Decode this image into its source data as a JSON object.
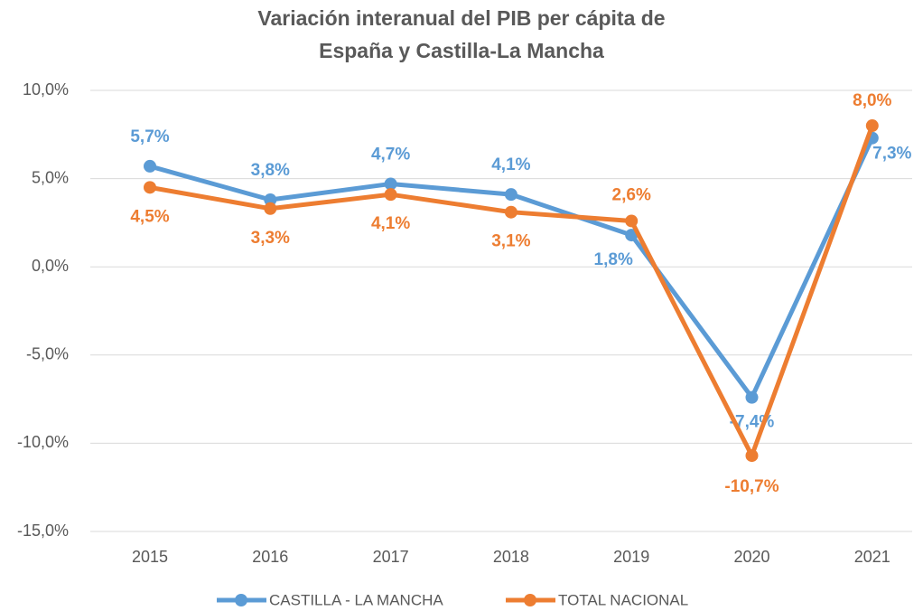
{
  "chart_data": {
    "type": "line",
    "title": [
      "Variación interanual del PIB per cápita de",
      "España y Castilla-La Mancha"
    ],
    "categories": [
      "2015",
      "2016",
      "2017",
      "2018",
      "2019",
      "2020",
      "2021"
    ],
    "series": [
      {
        "name": "CASTILLA - LA MANCHA",
        "color": "#5b9bd5",
        "values": [
          5.7,
          3.8,
          4.7,
          4.1,
          1.8,
          -7.4,
          7.3
        ],
        "value_labels": [
          "5,7%",
          "3,8%",
          "4,7%",
          "4,1%",
          "1,8%",
          "-7,4%",
          "7,3%"
        ]
      },
      {
        "name": "TOTAL NACIONAL",
        "color": "#ed7d31",
        "values": [
          4.5,
          3.3,
          4.1,
          3.1,
          2.6,
          -10.7,
          8.0
        ],
        "value_labels": [
          "4,5%",
          "3,3%",
          "4,1%",
          "3,1%",
          "2,6%",
          "-10,7%",
          "8,0%"
        ]
      }
    ],
    "ylim": [
      -15,
      10
    ],
    "yticks": [
      {
        "value": -15,
        "label": "-15,0%"
      },
      {
        "value": -10,
        "label": "-10,0%"
      },
      {
        "value": -5,
        "label": "-5,0%"
      },
      {
        "value": 0,
        "label": "0,0%"
      },
      {
        "value": 5,
        "label": "5,0%"
      },
      {
        "value": 10,
        "label": "10,0%"
      }
    ],
    "grid": true,
    "legend": "bottom"
  }
}
